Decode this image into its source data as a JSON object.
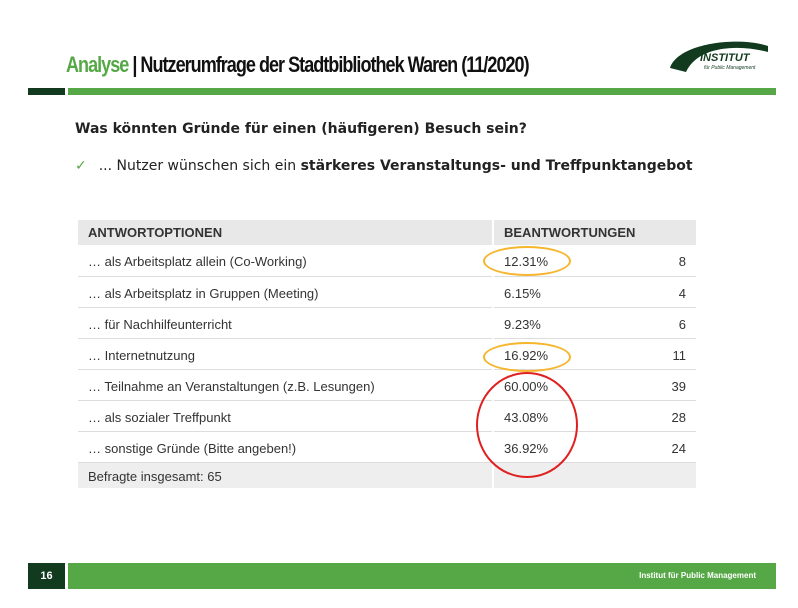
{
  "header": {
    "title_accent": "Analyse",
    "title_rest": "| Nutzerumfrage der Stadtbibliothek Waren (11/2020)",
    "logo_main": "INSTITUT",
    "logo_sub": "für Public Management"
  },
  "question": "Was könnten Gründe für einen (häufigeren) Besuch sein?",
  "bullet": {
    "icon": "checkmark-icon",
    "prefix": "... Nutzer wünschen sich ein ",
    "bold": "stärkeres Veranstaltungs- und Treffpunktangebot"
  },
  "table": {
    "headers": [
      "ANTWORTOPTIONEN",
      "BEANTWORTUNGEN"
    ],
    "rows": [
      {
        "option": "… als Arbeitsplatz allein (Co-Working)",
        "percent": "12.31%",
        "count": "8"
      },
      {
        "option": "… als Arbeitsplatz in Gruppen (Meeting)",
        "percent": "6.15%",
        "count": "4"
      },
      {
        "option": "… für Nachhilfeunterricht",
        "percent": "9.23%",
        "count": "6"
      },
      {
        "option": "… Internetnutzung",
        "percent": "16.92%",
        "count": "11"
      },
      {
        "option": "… Teilnahme an Veranstaltungen (z.B. Lesungen)",
        "percent": "60.00%",
        "count": "39"
      },
      {
        "option": "… als sozialer Treffpunkt",
        "percent": "43.08%",
        "count": "28"
      },
      {
        "option": "… sonstige Gründe (Bitte angeben!)",
        "percent": "36.92%",
        "count": "24"
      }
    ],
    "total": "Befragte insgesamt: 65"
  },
  "footer": {
    "page": "16",
    "org": "Institut für Public Management"
  },
  "colors": {
    "accent": "#56a846",
    "dark": "#123a1f",
    "highlight_orange": "#f6b52d",
    "highlight_red": "#e02020"
  }
}
